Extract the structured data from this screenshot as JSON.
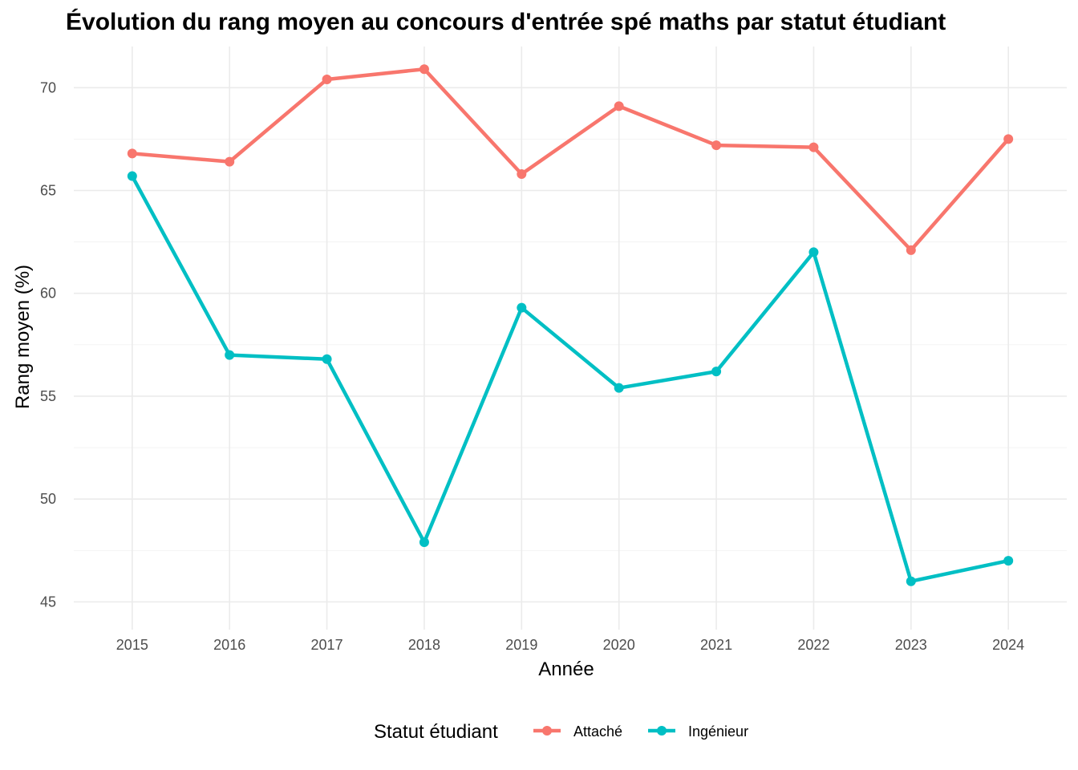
{
  "chart_data": {
    "type": "line",
    "title": "Évolution du rang moyen au concours d'entrée spé maths par statut étudiant",
    "xlabel": "Année",
    "ylabel": "Rang moyen (%)",
    "x": [
      2015,
      2016,
      2017,
      2018,
      2019,
      2020,
      2021,
      2022,
      2023,
      2024
    ],
    "x_tick_labels": [
      "2015",
      "2016",
      "2017",
      "2018",
      "2019",
      "2020",
      "2021",
      "2022",
      "2023",
      "2024"
    ],
    "yticks": [
      45,
      50,
      55,
      60,
      65,
      70
    ],
    "y_tick_labels": [
      "45",
      "50",
      "55",
      "60",
      "65",
      "70"
    ],
    "ylim": [
      45,
      72
    ],
    "grid": true,
    "legend": {
      "title": "Statut étudiant",
      "position": "bottom"
    },
    "series": [
      {
        "name": "Attaché",
        "color": "#F8766D",
        "values": [
          66.8,
          66.4,
          70.4,
          70.9,
          65.8,
          69.1,
          67.2,
          67.1,
          62.1,
          67.5
        ]
      },
      {
        "name": "Ingénieur",
        "color": "#00BFC4",
        "values": [
          65.7,
          57.0,
          56.8,
          47.9,
          59.3,
          55.4,
          56.2,
          62.0,
          46.0,
          47.0
        ]
      }
    ]
  }
}
